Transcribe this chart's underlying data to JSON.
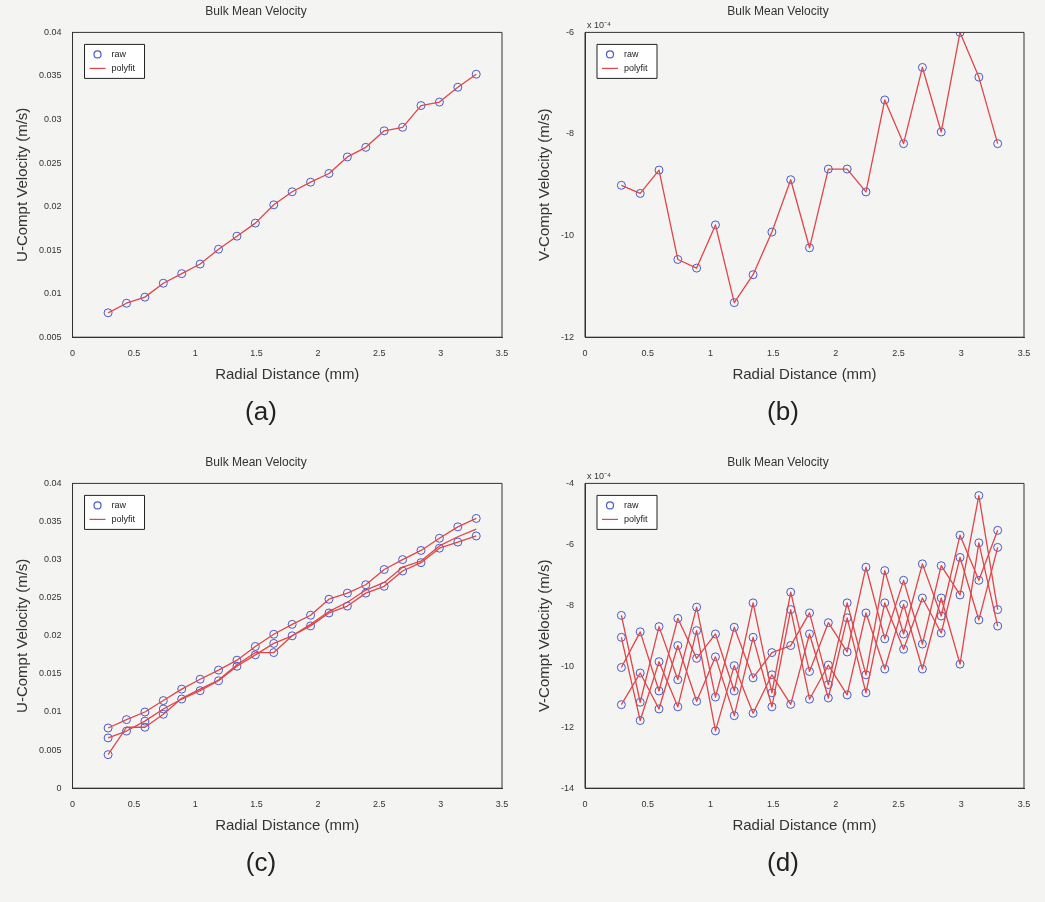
{
  "chart_data": [
    {
      "type": "line",
      "title": "Bulk Mean Velocity",
      "xlabel": "Radial Distance (mm)",
      "ylabel": "U-Compt Velocity (m/s)",
      "annotations": [
        "(a)"
      ],
      "legend": "top left",
      "grid": false,
      "x": [
        0.29,
        0.44,
        0.59,
        0.74,
        0.89,
        1.04,
        1.19,
        1.34,
        1.49,
        1.64,
        1.79,
        1.94,
        2.09,
        2.24,
        2.39,
        2.54,
        2.69,
        2.84,
        2.99,
        3.14,
        3.29
      ],
      "xlim": [
        0,
        3.5
      ],
      "xticks": [
        0,
        0.5,
        1,
        1.5,
        2,
        2.5,
        3,
        3.5
      ],
      "ylim": [
        0.005,
        0.04
      ],
      "yticks": [
        0.005,
        0.01,
        0.015,
        0.02,
        0.025,
        0.03,
        0.035,
        0.04
      ],
      "series": [
        {
          "name": "raw",
          "type": "scatter",
          "marker": "circle",
          "color": "#4a5ac8",
          "values": [
            0.0078,
            0.0089,
            0.0096,
            0.0112,
            0.0123,
            0.0134,
            0.0151,
            0.0166,
            0.0181,
            0.0202,
            0.0217,
            0.0228,
            0.0238,
            0.0257,
            0.0268,
            0.0287,
            0.0291,
            0.0316,
            0.032,
            0.0337,
            0.0352
          ]
        },
        {
          "name": "polyfit",
          "type": "line",
          "color": "#e0454a",
          "values": [
            0.0078,
            0.0089,
            0.0096,
            0.0112,
            0.0123,
            0.0134,
            0.0151,
            0.0166,
            0.0181,
            0.0202,
            0.0217,
            0.0228,
            0.0238,
            0.0257,
            0.0268,
            0.0287,
            0.0291,
            0.0316,
            0.032,
            0.0337,
            0.0352
          ]
        }
      ]
    },
    {
      "type": "line",
      "title": "Bulk Mean Velocity",
      "xlabel": "Radial Distance (mm)",
      "ylabel": "V-Compt Velocity (m/s)",
      "annotations": [
        "x 10⁻⁴",
        "(b)"
      ],
      "legend": "top left",
      "grid": false,
      "x": [
        0.29,
        0.44,
        0.59,
        0.74,
        0.89,
        1.04,
        1.19,
        1.34,
        1.49,
        1.64,
        1.79,
        1.94,
        2.09,
        2.24,
        2.39,
        2.54,
        2.69,
        2.84,
        2.99,
        3.14,
        3.29
      ],
      "xlim": [
        0,
        3.5
      ],
      "xticks": [
        0,
        0.5,
        1,
        1.5,
        2,
        2.5,
        3,
        3.5
      ],
      "ylim": [
        -12,
        -6
      ],
      "yticks": [
        -12,
        -10,
        -8,
        -6
      ],
      "series": [
        {
          "name": "raw",
          "type": "scatter",
          "marker": "circle",
          "color": "#4a5ac8",
          "values": [
            -9.01,
            -9.17,
            -8.71,
            -10.47,
            -10.64,
            -9.79,
            -11.32,
            -10.77,
            -9.93,
            -8.9,
            -10.24,
            -8.69,
            -8.69,
            -9.14,
            -7.33,
            -8.19,
            -6.69,
            -7.96,
            -6.0,
            -6.88,
            -8.19
          ]
        },
        {
          "name": "polyfit",
          "type": "line",
          "color": "#e0454a",
          "values": [
            -9.01,
            -9.17,
            -8.71,
            -10.47,
            -10.64,
            -9.79,
            -11.32,
            -10.77,
            -9.93,
            -8.9,
            -10.24,
            -8.69,
            -8.69,
            -9.14,
            -7.33,
            -8.19,
            -6.69,
            -7.96,
            -6.0,
            -6.88,
            -8.19
          ]
        }
      ]
    },
    {
      "type": "line",
      "title": "Bulk Mean Velocity",
      "xlabel": "Radial Distance (mm)",
      "ylabel": "U-Compt Velocity (m/s)",
      "annotations": [
        "(c)"
      ],
      "legend": "top left",
      "grid": false,
      "x": [
        0.29,
        0.44,
        0.59,
        0.74,
        0.89,
        1.04,
        1.19,
        1.34,
        1.49,
        1.64,
        1.79,
        1.94,
        2.09,
        2.24,
        2.39,
        2.54,
        2.69,
        2.84,
        2.99,
        3.14,
        3.29
      ],
      "xlim": [
        0,
        3.5
      ],
      "xticks": [
        0,
        0.5,
        1,
        1.5,
        2,
        2.5,
        3,
        3.5
      ],
      "ylim": [
        0,
        0.04
      ],
      "yticks": [
        0,
        0.005,
        0.01,
        0.015,
        0.02,
        0.025,
        0.03,
        0.035,
        0.04
      ],
      "series": [
        {
          "name": "raw",
          "type": "scatter",
          "marker": "circle",
          "color": "#4a5ac8",
          "values": [
            0.0066,
            0.0075,
            0.0088,
            0.0104,
            0.0117,
            0.0128,
            0.0141,
            0.016,
            0.0175,
            0.019,
            0.02,
            0.0213,
            0.023,
            0.0239,
            0.0256,
            0.0265,
            0.0285,
            0.0296,
            0.0315,
            0.0323,
            0.0331
          ]
        },
        {
          "type": "scatter",
          "marker": "circle",
          "color": "#4a5ac8",
          "values": [
            0.0079,
            0.009,
            0.01,
            0.0115,
            0.013,
            0.0143,
            0.0155,
            0.0168,
            0.0186,
            0.0202,
            0.0215,
            0.0227,
            0.0248,
            0.0256,
            0.0267,
            0.0287,
            0.03,
            0.0312,
            0.0328,
            0.0343,
            0.0354
          ]
        },
        {
          "type": "scatter",
          "marker": "circle",
          "color": "#4a5ac8",
          "x": [
            0.29,
            0.59,
            0.74,
            1.64
          ],
          "values": [
            0.0044,
            0.008,
            0.0097,
            0.0178
          ]
        },
        {
          "name": "polyfit",
          "type": "line",
          "color": "#e0454a",
          "values": [
            0.0066,
            0.0075,
            0.0088,
            0.0104,
            0.0117,
            0.0128,
            0.0141,
            0.016,
            0.0175,
            0.019,
            0.02,
            0.0213,
            0.023,
            0.0239,
            0.0256,
            0.0265,
            0.0285,
            0.0296,
            0.0315,
            0.0323,
            0.0331
          ]
        },
        {
          "type": "line",
          "color": "#e0454a",
          "values": [
            0.0079,
            0.009,
            0.01,
            0.0115,
            0.013,
            0.0143,
            0.0155,
            0.0168,
            0.0186,
            0.0202,
            0.0215,
            0.0227,
            0.0248,
            0.0256,
            0.0267,
            0.0287,
            0.03,
            0.0312,
            0.0328,
            0.0343,
            0.0354
          ]
        },
        {
          "type": "line",
          "color": "#e0454a",
          "values": [
            0.0044,
            0.008,
            0.008,
            0.0097,
            0.0118,
            0.013,
            0.0142,
            0.0162,
            0.0178,
            0.0178,
            0.02,
            0.0215,
            0.0232,
            0.0244,
            0.026,
            0.027,
            0.029,
            0.0298,
            0.0318,
            0.033,
            0.034
          ]
        }
      ]
    },
    {
      "type": "line",
      "title": "Bulk Mean Velocity",
      "xlabel": "Radial Distance (mm)",
      "ylabel": "V-Compt Velocity (m/s)",
      "annotations": [
        "x 10⁻⁴",
        "(d)"
      ],
      "legend": "top left",
      "grid": false,
      "x": [
        0.29,
        0.44,
        0.59,
        0.74,
        0.89,
        1.04,
        1.19,
        1.34,
        1.49,
        1.64,
        1.79,
        1.94,
        2.09,
        2.24,
        2.39,
        2.54,
        2.69,
        2.84,
        2.99,
        3.14,
        3.29
      ],
      "xlim": [
        0,
        3.5
      ],
      "xticks": [
        0,
        0.5,
        1,
        1.5,
        2,
        2.5,
        3,
        3.5
      ],
      "ylim": [
        -14,
        -4
      ],
      "yticks": [
        -14,
        -12,
        -10,
        -8,
        -6,
        -4
      ],
      "series": [
        {
          "name": "raw",
          "type": "scatter",
          "marker": "circle",
          "color": "#4a5ac8",
          "values": [
            -8.33,
            -8.87,
            -8.7,
            -8.43,
            -8.06,
            -8.94,
            -8.72,
            -7.92,
            -9.55,
            -7.57,
            -8.25,
            -8.57,
            -7.92,
            -6.75,
            -6.86,
            -7.18,
            -6.64,
            -6.7,
            -5.7,
            -4.4,
            -5.54
          ]
        },
        {
          "type": "scatter",
          "marker": "circle",
          "color": "#4a5ac8",
          "values": [
            -9.05,
            -10.22,
            -9.85,
            -9.32,
            -8.83,
            -9.69,
            -9.98,
            -9.05,
            -10.28,
            -8.14,
            -8.94,
            -9.96,
            -8.41,
            -8.25,
            -7.92,
            -7.97,
            -7.76,
            -7.76,
            -6.43,
            -5.95,
            -6.1
          ]
        },
        {
          "type": "scatter",
          "marker": "circle",
          "color": "#4a5ac8",
          "values": [
            -10.04,
            -11.18,
            -10.81,
            -10.44,
            -9.74,
            -11.01,
            -10.81,
            -10.38,
            -10.87,
            -9.32,
            -10.17,
            -10.6,
            -9.53,
            -10.28,
            -9.1,
            -8.94,
            -9.27,
            -8.35,
            -7.66,
            -7.18,
            -8.14
          ]
        },
        {
          "type": "scatter",
          "marker": "circle",
          "color": "#4a5ac8",
          "values": [
            -11.26,
            -11.78,
            -11.4,
            -11.33,
            -11.15,
            -12.12,
            -11.62,
            -11.54,
            -11.33,
            -11.25,
            -11.08,
            -11.04,
            -10.94,
            -10.87,
            -10.09,
            -9.44,
            -10.09,
            -8.91,
            -9.93,
            -8.48,
            -8.68
          ]
        },
        {
          "name": "polyfit",
          "type": "line",
          "color": "#e0454a",
          "values": [
            -8.33,
            -11.18,
            -8.7,
            -10.44,
            -8.06,
            -11.01,
            -8.72,
            -10.38,
            -9.55,
            -9.32,
            -8.25,
            -10.6,
            -7.92,
            -10.28,
            -6.86,
            -8.94,
            -6.64,
            -8.35,
            -5.7,
            -7.18,
            -5.54
          ]
        },
        {
          "type": "line",
          "color": "#e0454a",
          "values": [
            -10.04,
            -8.87,
            -10.81,
            -8.43,
            -9.74,
            -8.94,
            -10.81,
            -7.92,
            -10.87,
            -7.57,
            -10.17,
            -8.57,
            -9.53,
            -6.75,
            -9.1,
            -7.18,
            -9.27,
            -6.7,
            -7.66,
            -4.4,
            -8.14
          ]
        },
        {
          "type": "line",
          "color": "#e0454a",
          "values": [
            -9.05,
            -11.78,
            -9.85,
            -11.33,
            -8.83,
            -12.12,
            -9.98,
            -11.54,
            -10.28,
            -11.25,
            -8.94,
            -11.04,
            -8.41,
            -10.87,
            -7.92,
            -9.44,
            -7.76,
            -8.91,
            -6.43,
            -8.48,
            -6.1
          ]
        },
        {
          "type": "line",
          "color": "#e0454a",
          "values": [
            -11.26,
            -10.22,
            -11.4,
            -9.32,
            -11.15,
            -9.69,
            -11.62,
            -9.05,
            -11.33,
            -8.14,
            -11.08,
            -9.96,
            -10.94,
            -8.25,
            -10.09,
            -7.97,
            -10.09,
            -7.76,
            -9.93,
            -5.95,
            -8.68
          ]
        }
      ]
    }
  ]
}
